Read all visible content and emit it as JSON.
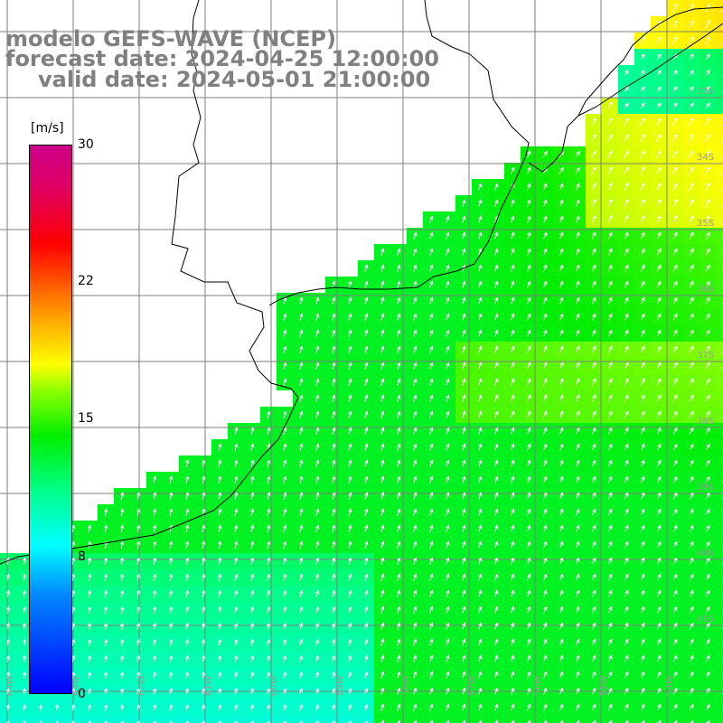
{
  "title": {
    "line1": "modelo GEFS-WAVE (NCEP)",
    "line2": "forecast date: 2024-04-25 12:00:00",
    "line3": "valid date: 2024-05-01 21:00:00"
  },
  "colorbar": {
    "unit": "[m/s]",
    "ticks": [
      "30",
      "22",
      "15",
      "8",
      "0"
    ],
    "colors": [
      "#0000ff",
      "#00aaff",
      "#00ffff",
      "#00ff66",
      "#00ee00",
      "#66ff00",
      "#ffff00",
      "#ffaa00",
      "#ff6600",
      "#ff0000",
      "#ee0066",
      "#cc0088"
    ]
  },
  "grid_labels": {
    "lat": [
      "33S",
      "34S",
      "35S",
      "36S",
      "37S",
      "38S",
      "39S",
      "40S",
      "41S"
    ],
    "lon": [
      "64W",
      "63W",
      "62W",
      "61W",
      "60W",
      "59W",
      "58W",
      "57W",
      "56W",
      "55W",
      "54W"
    ]
  },
  "wind_field": {
    "variable": "wind speed",
    "unit": "m/s",
    "dominant_direction": "from south-southwest",
    "cells": [
      {
        "zone": "coastal northeast",
        "speed": 13
      },
      {
        "zone": "open ocean northeast",
        "speed": 16
      },
      {
        "zone": "central shelf",
        "speed": 12
      },
      {
        "zone": "southwest",
        "speed": 9
      }
    ]
  },
  "colors": {
    "land": "#ffffff",
    "coastline": "#000000",
    "grid": "#7f7f7f",
    "arrow": "#ffffff"
  }
}
